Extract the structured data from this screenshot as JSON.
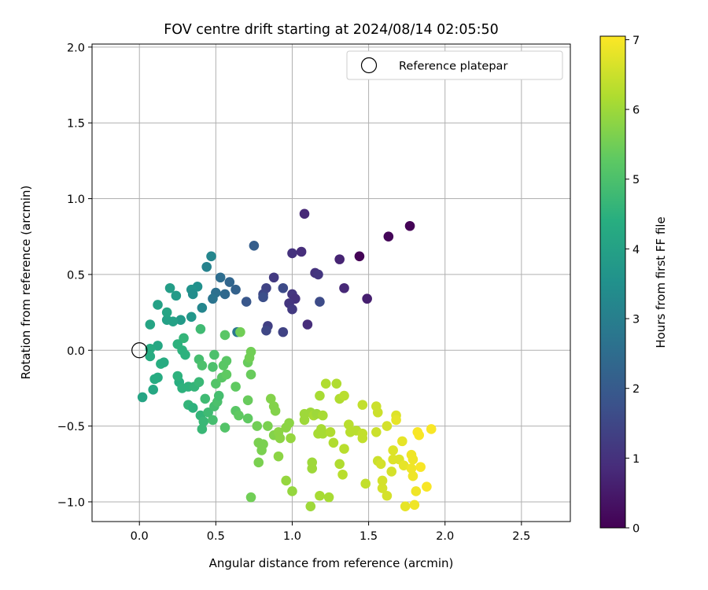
{
  "chart_data": {
    "type": "scatter",
    "title": "FOV centre drift starting at 2024/08/14 02:05:50",
    "xlabel": "Angular distance from reference (arcmin)",
    "ylabel": "Rotation from reference (arcmin)",
    "xlim": [
      -0.31,
      2.82
    ],
    "ylim": [
      -1.13,
      2.02
    ],
    "xticks": [
      "0.0",
      "0.5",
      "1.0",
      "1.5",
      "2.0",
      "2.5"
    ],
    "xtick_values": [
      0.0,
      0.5,
      1.0,
      1.5,
      2.0,
      2.5
    ],
    "yticks": [
      "−1.0",
      "−0.5",
      "0.0",
      "0.5",
      "1.0",
      "1.5",
      "2.0"
    ],
    "ytick_values": [
      -1.0,
      -0.5,
      0.0,
      0.5,
      1.0,
      1.5,
      2.0
    ],
    "grid": true,
    "legend": {
      "position": "top-right",
      "entries": [
        "Reference platepar"
      ]
    },
    "reference_point": {
      "x": 0.0,
      "y": 0.0
    },
    "colorbar": {
      "label": "Hours from first FF file",
      "colormap": "viridis",
      "range": [
        0,
        7.05
      ],
      "ticks": [
        "0",
        "1",
        "2",
        "3",
        "4",
        "5",
        "6",
        "7"
      ],
      "tick_values": [
        0,
        1,
        2,
        3,
        4,
        5,
        6,
        7
      ]
    },
    "points": [
      [
        1.44,
        0.62,
        0.05
      ],
      [
        1.63,
        0.75,
        0.1
      ],
      [
        1.77,
        0.82,
        0.05
      ],
      [
        1.08,
        0.9,
        0.8
      ],
      [
        1.31,
        0.6,
        0.7
      ],
      [
        1.0,
        0.64,
        1.0
      ],
      [
        1.06,
        0.65,
        0.9
      ],
      [
        1.34,
        0.41,
        0.8
      ],
      [
        1.49,
        0.34,
        0.6
      ],
      [
        1.15,
        0.51,
        1.0
      ],
      [
        1.17,
        0.5,
        1.1
      ],
      [
        1.18,
        0.32,
        1.6
      ],
      [
        1.1,
        0.17,
        0.9
      ],
      [
        1.0,
        0.37,
        1.1
      ],
      [
        1.02,
        0.34,
        1.0
      ],
      [
        0.98,
        0.31,
        1.1
      ],
      [
        1.0,
        0.27,
        1.2
      ],
      [
        0.94,
        0.41,
        1.6
      ],
      [
        0.88,
        0.48,
        1.2
      ],
      [
        0.83,
        0.41,
        1.4
      ],
      [
        0.84,
        0.16,
        1.3
      ],
      [
        0.83,
        0.13,
        1.5
      ],
      [
        0.94,
        0.12,
        1.4
      ],
      [
        0.81,
        0.37,
        1.5
      ],
      [
        0.81,
        0.35,
        1.7
      ],
      [
        0.75,
        0.69,
        2.1
      ],
      [
        0.7,
        0.32,
        1.9
      ],
      [
        0.63,
        0.4,
        2.2
      ],
      [
        0.59,
        0.45,
        2.3
      ],
      [
        0.56,
        0.37,
        2.4
      ],
      [
        0.53,
        0.48,
        2.5
      ],
      [
        0.5,
        0.38,
        2.6
      ],
      [
        0.48,
        0.34,
        2.7
      ],
      [
        0.47,
        0.62,
        3.2
      ],
      [
        0.44,
        0.55,
        3.1
      ],
      [
        0.41,
        0.28,
        3.2
      ],
      [
        0.64,
        0.12,
        2.8
      ],
      [
        0.38,
        0.42,
        3.5
      ],
      [
        0.34,
        0.4,
        3.6
      ],
      [
        0.35,
        0.37,
        3.4
      ],
      [
        0.34,
        0.22,
        3.7
      ],
      [
        0.27,
        0.2,
        3.8
      ],
      [
        0.24,
        0.36,
        3.8
      ],
      [
        0.2,
        0.41,
        3.9
      ],
      [
        0.22,
        0.19,
        4.0
      ],
      [
        0.18,
        0.2,
        4.0
      ],
      [
        0.18,
        0.25,
        4.1
      ],
      [
        0.12,
        0.3,
        4.0
      ],
      [
        0.07,
        0.17,
        4.1
      ],
      [
        0.12,
        0.03,
        4.2
      ],
      [
        0.07,
        0.01,
        4.3
      ],
      [
        0.07,
        -0.04,
        4.3
      ],
      [
        0.14,
        -0.09,
        4.4
      ],
      [
        0.16,
        -0.08,
        4.3
      ],
      [
        0.12,
        -0.18,
        4.3
      ],
      [
        0.1,
        -0.19,
        4.3
      ],
      [
        0.09,
        -0.26,
        4.2
      ],
      [
        0.02,
        -0.31,
        4.1
      ],
      [
        0.26,
        -0.21,
        4.4
      ],
      [
        0.25,
        -0.17,
        4.5
      ],
      [
        0.28,
        -0.25,
        4.5
      ],
      [
        0.3,
        -0.03,
        4.5
      ],
      [
        0.28,
        0.0,
        4.5
      ],
      [
        0.29,
        0.08,
        4.6
      ],
      [
        0.25,
        0.04,
        4.5
      ],
      [
        0.32,
        -0.24,
        4.5
      ],
      [
        0.36,
        -0.24,
        4.6
      ],
      [
        0.39,
        -0.21,
        4.7
      ],
      [
        0.32,
        -0.36,
        4.6
      ],
      [
        0.35,
        -0.38,
        4.5
      ],
      [
        0.4,
        -0.43,
        4.6
      ],
      [
        0.41,
        -0.52,
        4.7
      ],
      [
        0.42,
        -0.47,
        4.7
      ],
      [
        0.43,
        -0.32,
        4.8
      ],
      [
        0.45,
        -0.41,
        4.8
      ],
      [
        0.48,
        -0.46,
        4.9
      ],
      [
        0.49,
        -0.37,
        4.9
      ],
      [
        0.51,
        -0.34,
        5.0
      ],
      [
        0.52,
        -0.3,
        4.9
      ],
      [
        0.4,
        0.14,
        4.8
      ],
      [
        0.39,
        -0.06,
        4.9
      ],
      [
        0.41,
        -0.1,
        5.0
      ],
      [
        0.49,
        -0.03,
        5.0
      ],
      [
        0.48,
        -0.11,
        5.0
      ],
      [
        0.5,
        -0.22,
        5.1
      ],
      [
        0.54,
        -0.18,
        5.2
      ],
      [
        0.55,
        -0.1,
        5.2
      ],
      [
        0.57,
        -0.07,
        5.2
      ],
      [
        0.57,
        -0.16,
        5.3
      ],
      [
        0.56,
        0.1,
        5.2
      ],
      [
        0.63,
        -0.24,
        5.3
      ],
      [
        0.63,
        -0.4,
        5.2
      ],
      [
        0.65,
        -0.43,
        5.3
      ],
      [
        0.56,
        -0.51,
        5.1
      ],
      [
        0.71,
        -0.45,
        5.3
      ],
      [
        0.71,
        -0.33,
        5.4
      ],
      [
        0.71,
        -0.08,
        5.4
      ],
      [
        0.73,
        -0.16,
        5.4
      ],
      [
        0.72,
        -0.05,
        5.5
      ],
      [
        0.73,
        -0.01,
        5.5
      ],
      [
        0.66,
        0.12,
        5.5
      ],
      [
        0.77,
        -0.5,
        5.5
      ],
      [
        0.78,
        -0.61,
        5.6
      ],
      [
        0.81,
        -0.62,
        5.6
      ],
      [
        0.8,
        -0.66,
        5.6
      ],
      [
        0.78,
        -0.74,
        5.6
      ],
      [
        0.73,
        -0.97,
        5.5
      ],
      [
        0.84,
        -0.5,
        5.6
      ],
      [
        0.86,
        -0.32,
        5.7
      ],
      [
        0.88,
        -0.37,
        5.7
      ],
      [
        0.89,
        -0.4,
        5.7
      ],
      [
        0.88,
        -0.56,
        5.7
      ],
      [
        0.91,
        -0.54,
        5.8
      ],
      [
        0.92,
        -0.58,
        5.8
      ],
      [
        0.91,
        -0.7,
        5.8
      ],
      [
        0.96,
        -0.51,
        5.8
      ],
      [
        0.98,
        -0.48,
        5.8
      ],
      [
        0.99,
        -0.58,
        5.9
      ],
      [
        0.96,
        -0.86,
        5.9
      ],
      [
        1.0,
        -0.93,
        5.9
      ],
      [
        1.08,
        -0.42,
        6.0
      ],
      [
        1.08,
        -0.46,
        6.0
      ],
      [
        1.12,
        -0.41,
        6.0
      ],
      [
        1.14,
        -0.43,
        6.1
      ],
      [
        1.16,
        -0.42,
        6.0
      ],
      [
        1.17,
        -0.55,
        6.1
      ],
      [
        1.19,
        -0.52,
        6.1
      ],
      [
        1.2,
        -0.55,
        6.1
      ],
      [
        1.18,
        -0.3,
        6.1
      ],
      [
        1.2,
        -0.43,
        6.1
      ],
      [
        1.13,
        -0.74,
        6.0
      ],
      [
        1.13,
        -0.78,
        6.0
      ],
      [
        1.12,
        -1.03,
        6.0
      ],
      [
        1.18,
        -0.96,
        6.1
      ],
      [
        1.24,
        -0.97,
        6.1
      ],
      [
        1.22,
        -0.22,
        6.2
      ],
      [
        1.29,
        -0.22,
        6.2
      ],
      [
        1.31,
        -0.32,
        6.2
      ],
      [
        1.34,
        -0.3,
        6.3
      ],
      [
        1.25,
        -0.54,
        6.2
      ],
      [
        1.27,
        -0.61,
        6.2
      ],
      [
        1.31,
        -0.75,
        6.2
      ],
      [
        1.33,
        -0.82,
        6.3
      ],
      [
        1.34,
        -0.65,
        6.3
      ],
      [
        1.37,
        -0.49,
        6.3
      ],
      [
        1.38,
        -0.54,
        6.3
      ],
      [
        1.42,
        -0.53,
        6.3
      ],
      [
        1.46,
        -0.36,
        6.4
      ],
      [
        1.46,
        -0.55,
        6.4
      ],
      [
        1.46,
        -0.58,
        6.4
      ],
      [
        1.48,
        -0.88,
        6.4
      ],
      [
        1.55,
        -0.37,
        6.5
      ],
      [
        1.56,
        -0.41,
        6.5
      ],
      [
        1.55,
        -0.54,
        6.5
      ],
      [
        1.56,
        -0.73,
        6.5
      ],
      [
        1.58,
        -0.75,
        6.6
      ],
      [
        1.59,
        -0.86,
        6.6
      ],
      [
        1.59,
        -0.91,
        6.6
      ],
      [
        1.62,
        -0.96,
        6.6
      ],
      [
        1.62,
        -0.5,
        6.6
      ],
      [
        1.65,
        -0.8,
        6.6
      ],
      [
        1.66,
        -0.66,
        6.7
      ],
      [
        1.66,
        -0.72,
        6.7
      ],
      [
        1.68,
        -0.43,
        6.7
      ],
      [
        1.68,
        -0.46,
        6.8
      ],
      [
        1.7,
        -0.72,
        6.7
      ],
      [
        1.72,
        -0.6,
        6.8
      ],
      [
        1.73,
        -0.76,
        6.8
      ],
      [
        1.74,
        -1.03,
        6.8
      ],
      [
        1.78,
        -0.69,
        6.9
      ],
      [
        1.79,
        -0.72,
        6.9
      ],
      [
        1.78,
        -0.78,
        6.9
      ],
      [
        1.79,
        -0.83,
        6.9
      ],
      [
        1.8,
        -1.02,
        6.9
      ],
      [
        1.81,
        -0.93,
        6.9
      ],
      [
        1.82,
        -0.54,
        7.0
      ],
      [
        1.83,
        -0.56,
        7.0
      ],
      [
        1.84,
        -0.77,
        7.0
      ],
      [
        1.88,
        -0.9,
        7.0
      ],
      [
        1.91,
        -0.52,
        7.0
      ]
    ]
  }
}
